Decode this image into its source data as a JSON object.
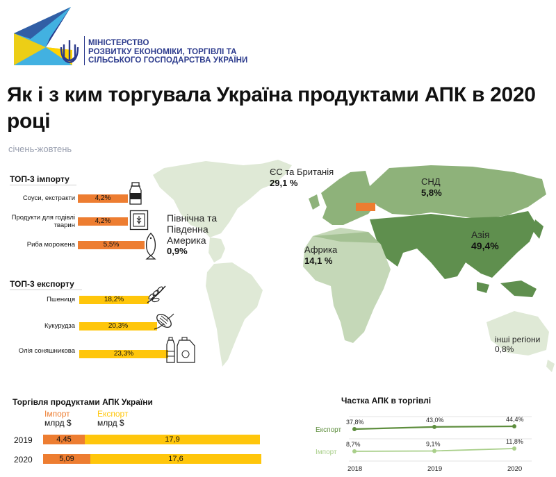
{
  "ministry": {
    "lines": [
      "МІНІСТЕРСТВО",
      "РОЗВИТКУ ЕКОНОМІКИ, ТОРГІВЛІ ТА",
      "СІЛЬСЬКОГО ГОСПОДАРСТВА УКРАЇНИ"
    ],
    "colors": {
      "blue": "#2b3a8c",
      "cyan": "#21a3dc",
      "yellow": "#ffd200"
    }
  },
  "title": "Як і з ким торгувала Україна продуктами АПК в 2020 році",
  "subtitle": "січень-жовтень",
  "import_top3": {
    "title": "ТОП-3 імпорту",
    "items": [
      {
        "label": "Соуси, екстракти",
        "value": "4,2%",
        "share": 4.2,
        "icon": "jar-icon"
      },
      {
        "label": "Продукти для годівлі тварин",
        "value": "4,2%",
        "share": 4.2,
        "icon": "feed-bag-icon"
      },
      {
        "label": "Риба морожена",
        "value": "5,5%",
        "share": 5.5,
        "icon": "fish-icon"
      }
    ]
  },
  "export_top3": {
    "title": "ТОП-3 експорту",
    "items": [
      {
        "label": "Пшениця",
        "value": "18,2%",
        "share": 18.2,
        "icon": "wheat-icon"
      },
      {
        "label": "Кукурудза",
        "value": "20,3%",
        "share": 20.3,
        "icon": "corn-icon"
      },
      {
        "label": "Олія соняшникова",
        "value": "23,3%",
        "share": 23.3,
        "icon": "oil-bottles-icon"
      }
    ]
  },
  "map": {
    "regions": [
      {
        "id": "eu-uk",
        "name": "ЄС та Британія",
        "pct": "29,1 %"
      },
      {
        "id": "cis",
        "name": "СНД",
        "pct": "5,8%"
      },
      {
        "id": "americas",
        "name": "Північна та Південна Америка",
        "pct": "0,9%"
      },
      {
        "id": "africa",
        "name": "Африка",
        "pct": "14,1 %"
      },
      {
        "id": "asia",
        "name": "Азія",
        "pct": "49,4%"
      },
      {
        "id": "other",
        "name": "інші регіони",
        "pct": "0,8%"
      }
    ],
    "colors": {
      "dark": "#5f8f4e",
      "mid": "#8eb27a",
      "light": "#c5d8b8",
      "pale": "#dfe9d6",
      "ukraine": "#ed7d31"
    }
  },
  "trade": {
    "title": "Торгівля продуктами АПК  України",
    "legend": {
      "import": "Імпорт",
      "export": "Експорт",
      "unit": "млрд $"
    },
    "years": [
      {
        "year": "2019",
        "import": "4,45",
        "import_value": 4.45,
        "export": "17,9",
        "export_value": 17.9
      },
      {
        "year": "2020",
        "import": "5,09",
        "import_value": 5.09,
        "export": "17,6",
        "export_value": 17.6
      }
    ],
    "colors": {
      "import": "#ed7d31",
      "export": "#ffc60b"
    }
  },
  "chart_data": {
    "type": "line",
    "title": "Частка АПК в торгівлі",
    "x": [
      "2018",
      "2019",
      "2020"
    ],
    "series": [
      {
        "name": "Експорт",
        "values": [
          37.8,
          43.0,
          44.4
        ],
        "labels": [
          "37,8%",
          "43,0%",
          "44,4%"
        ],
        "color": "#5e8e3e"
      },
      {
        "name": "Імпорт",
        "values": [
          8.7,
          9.1,
          11.8
        ],
        "labels": [
          "8,7%",
          "9,1%",
          "11,8%"
        ],
        "color": "#a9cf8a"
      }
    ]
  }
}
